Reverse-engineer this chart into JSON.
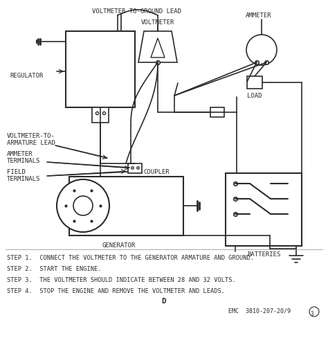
{
  "bg_color": "#ffffff",
  "line_color": "#2a2a2a",
  "step1": "STEP 1.  CONNECT THE VOLTMETER TO THE GENERATOR ARMATURE AND GROUND.",
  "step2": "STEP 2.  START THE ENGINE.",
  "step3": "STEP 3.  THE VOLTMETER SHOULD INDICATE BETWEEN 28 AND 32 VOLTS.",
  "step4": "STEP 4.  STOP THE ENGINE AND REMOVE THE VOLTMETER AND LEADS.",
  "label_d": "D",
  "label_emc": "EMC  3810-207-20/9",
  "lw": 1.2
}
